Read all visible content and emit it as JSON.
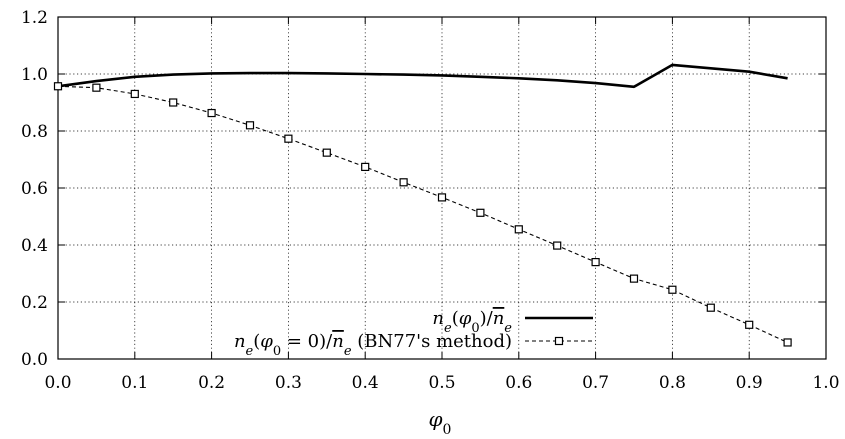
{
  "chart_data": {
    "type": "line",
    "title": "",
    "xlabel": "φ0",
    "ylabel": "",
    "xlim": [
      0.0,
      1.0
    ],
    "ylim": [
      0.0,
      1.2
    ],
    "grid": true,
    "legend_position": "bottom-right",
    "x_ticks": [
      "0.0",
      "0.1",
      "0.2",
      "0.3",
      "0.4",
      "0.5",
      "0.6",
      "0.7",
      "0.8",
      "0.9",
      "1.0"
    ],
    "y_ticks": [
      "0.0",
      "0.2",
      "0.4",
      "0.6",
      "0.8",
      "1.0",
      "1.2"
    ],
    "series": [
      {
        "name": "ne(φ0)/n̄e",
        "style": "solid-thick",
        "x": [
          0.0,
          0.05,
          0.1,
          0.15,
          0.2,
          0.25,
          0.3,
          0.35,
          0.4,
          0.45,
          0.5,
          0.55,
          0.6,
          0.65,
          0.7,
          0.75,
          0.8,
          0.85,
          0.9,
          0.95
        ],
        "y": [
          0.957,
          0.975,
          0.99,
          0.998,
          1.002,
          1.003,
          1.003,
          1.002,
          1.0,
          0.998,
          0.995,
          0.99,
          0.985,
          0.978,
          0.968,
          0.955,
          1.032,
          1.02,
          1.008,
          0.985
        ]
      },
      {
        "name": "ne(φ0 = 0)/n̄e (BN77's method)",
        "style": "dashed-square-markers",
        "x": [
          0.0,
          0.05,
          0.1,
          0.15,
          0.2,
          0.25,
          0.3,
          0.35,
          0.4,
          0.45,
          0.5,
          0.55,
          0.6,
          0.65,
          0.7,
          0.75,
          0.8,
          0.85,
          0.9,
          0.95
        ],
        "y": [
          0.957,
          0.952,
          0.93,
          0.9,
          0.863,
          0.82,
          0.773,
          0.724,
          0.674,
          0.62,
          0.567,
          0.513,
          0.455,
          0.398,
          0.34,
          0.282,
          0.243,
          0.18,
          0.12,
          0.058
        ]
      }
    ]
  }
}
